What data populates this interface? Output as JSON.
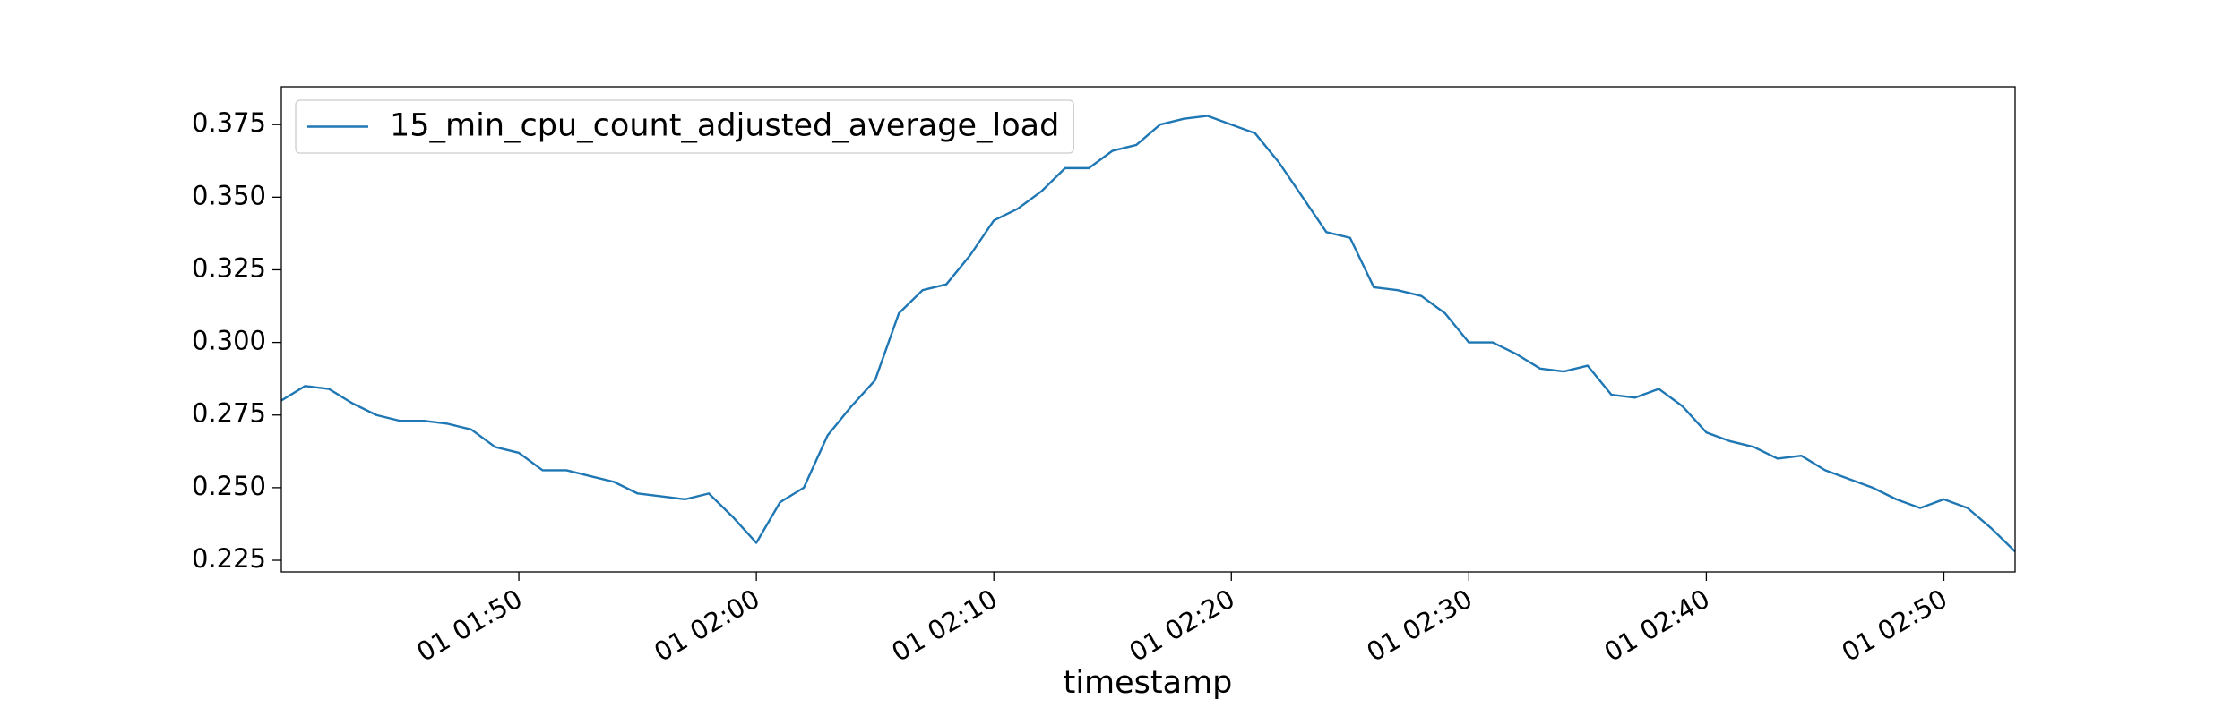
{
  "chart_data": {
    "type": "line",
    "x_label": "timestamp",
    "x": [
      "01 01:40",
      "01 01:41",
      "01 01:42",
      "01 01:43",
      "01 01:44",
      "01 01:45",
      "01 01:46",
      "01 01:47",
      "01 01:48",
      "01 01:49",
      "01 01:50",
      "01 01:51",
      "01 01:52",
      "01 01:53",
      "01 01:54",
      "01 01:55",
      "01 01:56",
      "01 01:57",
      "01 01:58",
      "01 01:59",
      "01 02:00",
      "01 02:01",
      "01 02:02",
      "01 02:03",
      "01 02:04",
      "01 02:05",
      "01 02:06",
      "01 02:07",
      "01 02:08",
      "01 02:09",
      "01 02:10",
      "01 02:11",
      "01 02:12",
      "01 02:13",
      "01 02:14",
      "01 02:15",
      "01 02:16",
      "01 02:17",
      "01 02:18",
      "01 02:19",
      "01 02:20",
      "01 02:21",
      "01 02:22",
      "01 02:23",
      "01 02:24",
      "01 02:25",
      "01 02:26",
      "01 02:27",
      "01 02:28",
      "01 02:29",
      "01 02:30",
      "01 02:31",
      "01 02:32",
      "01 02:33",
      "01 02:34",
      "01 02:35",
      "01 02:36",
      "01 02:37",
      "01 02:38",
      "01 02:39",
      "01 02:40",
      "01 02:41",
      "01 02:42",
      "01 02:43",
      "01 02:44",
      "01 02:45",
      "01 02:46",
      "01 02:47",
      "01 02:48",
      "01 02:49",
      "01 02:50",
      "01 02:51",
      "01 02:52",
      "01 02:53"
    ],
    "series": [
      {
        "name": "15_min_cpu_count_adjusted_average_load",
        "color": "#1f77b4",
        "values": [
          0.28,
          0.285,
          0.284,
          0.279,
          0.275,
          0.273,
          0.273,
          0.272,
          0.27,
          0.264,
          0.262,
          0.256,
          0.256,
          0.254,
          0.252,
          0.248,
          0.247,
          0.246,
          0.248,
          0.24,
          0.231,
          0.245,
          0.25,
          0.268,
          0.278,
          0.287,
          0.31,
          0.318,
          0.32,
          0.33,
          0.342,
          0.346,
          0.352,
          0.36,
          0.36,
          0.366,
          0.368,
          0.375,
          0.377,
          0.378,
          0.375,
          0.372,
          0.362,
          0.35,
          0.338,
          0.336,
          0.319,
          0.318,
          0.316,
          0.31,
          0.3,
          0.3,
          0.296,
          0.291,
          0.29,
          0.292,
          0.282,
          0.281,
          0.284,
          0.278,
          0.269,
          0.266,
          0.264,
          0.26,
          0.261,
          0.256,
          0.253,
          0.25,
          0.246,
          0.243,
          0.246,
          0.243,
          0.236,
          0.228
        ]
      }
    ],
    "xlim": [
      "01 01:40",
      "01 02:53"
    ],
    "xticks": [
      "01 01:50",
      "01 02:00",
      "01 02:10",
      "01 02:20",
      "01 02:30",
      "01 02:40",
      "01 02:50"
    ],
    "ylim": [
      0.221,
      0.388
    ],
    "yticks": [
      0.225,
      {
        "value": 0.25,
        "label": "0.250"
      },
      0.275,
      {
        "value": 0.3,
        "label": "0.300"
      },
      0.325,
      {
        "value": 0.35,
        "label": "0.350"
      },
      0.375
    ],
    "legend": "upper left"
  }
}
